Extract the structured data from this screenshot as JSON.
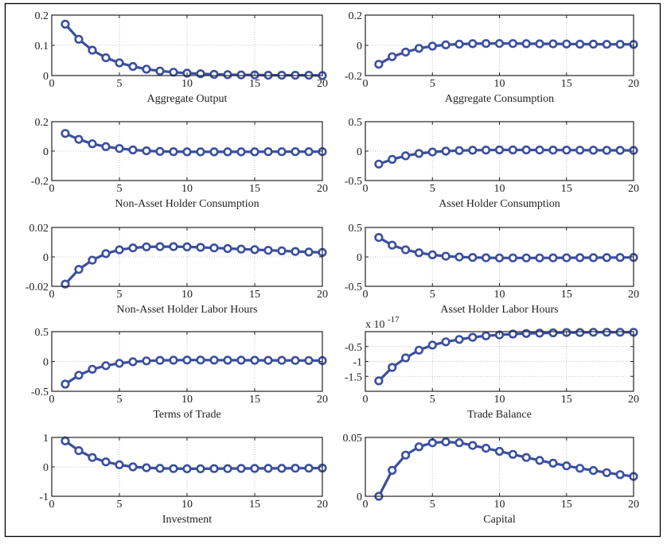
{
  "figure": {
    "line_color": "#3a4f9e",
    "marker_fill": "#ffffff",
    "frame_color": "#000000",
    "grid": true
  },
  "chart_data": [
    {
      "type": "line",
      "id": "aggregate-output",
      "xlabel": "Aggregate Output",
      "ylabel": "",
      "x": [
        1,
        2,
        3,
        4,
        5,
        6,
        7,
        8,
        9,
        10,
        11,
        12,
        13,
        14,
        15,
        16,
        17,
        18,
        19,
        20
      ],
      "values": [
        0.17,
        0.12,
        0.084,
        0.059,
        0.042,
        0.03,
        0.021,
        0.015,
        0.011,
        0.008,
        0.006,
        0.004,
        0.003,
        0.002,
        0.002,
        0.001,
        0.001,
        0.001,
        0.001,
        0.0
      ],
      "xlim": [
        0,
        20
      ],
      "ylim": [
        0,
        0.2
      ],
      "xticks": [
        "0",
        "5",
        "10",
        "15",
        "20"
      ],
      "xtick_values": [
        0,
        5,
        10,
        15,
        20
      ],
      "yticks": [
        "0",
        "0.1",
        "0.2"
      ],
      "ytick_values": [
        0,
        0.1,
        0.2
      ]
    },
    {
      "type": "line",
      "id": "aggregate-consumption",
      "xlabel": "Aggregate Consumption",
      "ylabel": "",
      "x": [
        1,
        2,
        3,
        4,
        5,
        6,
        7,
        8,
        9,
        10,
        11,
        12,
        13,
        14,
        15,
        16,
        17,
        18,
        19,
        20
      ],
      "values": [
        -0.125,
        -0.075,
        -0.045,
        -0.02,
        -0.005,
        0.003,
        0.008,
        0.011,
        0.012,
        0.012,
        0.012,
        0.011,
        0.01,
        0.01,
        0.009,
        0.008,
        0.008,
        0.007,
        0.007,
        0.006
      ],
      "xlim": [
        0,
        20
      ],
      "ylim": [
        -0.2,
        0.2
      ],
      "xticks": [
        "0",
        "5",
        "10",
        "15",
        "20"
      ],
      "xtick_values": [
        0,
        5,
        10,
        15,
        20
      ],
      "yticks": [
        "-0.2",
        "0",
        "0.2"
      ],
      "ytick_values": [
        -0.2,
        0,
        0.2
      ]
    },
    {
      "type": "line",
      "id": "non-asset-holder-consumption",
      "xlabel": "Non-Asset Holder Consumption",
      "ylabel": "",
      "x": [
        1,
        2,
        3,
        4,
        5,
        6,
        7,
        8,
        9,
        10,
        11,
        12,
        13,
        14,
        15,
        16,
        17,
        18,
        19,
        20
      ],
      "values": [
        0.12,
        0.08,
        0.05,
        0.03,
        0.018,
        0.008,
        0.002,
        -0.002,
        -0.004,
        -0.005,
        -0.005,
        -0.005,
        -0.005,
        -0.005,
        -0.005,
        -0.004,
        -0.004,
        -0.004,
        -0.004,
        -0.004
      ],
      "xlim": [
        0,
        20
      ],
      "ylim": [
        -0.2,
        0.2
      ],
      "xticks": [
        "0",
        "5",
        "10",
        "15",
        "20"
      ],
      "xtick_values": [
        0,
        5,
        10,
        15,
        20
      ],
      "yticks": [
        "-0.2",
        "0",
        "0.2"
      ],
      "ytick_values": [
        -0.2,
        0,
        0.2
      ]
    },
    {
      "type": "line",
      "id": "asset-holder-consumption",
      "xlabel": "Asset Holder Consumption",
      "ylabel": "",
      "x": [
        1,
        2,
        3,
        4,
        5,
        6,
        7,
        8,
        9,
        10,
        11,
        12,
        13,
        14,
        15,
        16,
        17,
        18,
        19,
        20
      ],
      "values": [
        -0.22,
        -0.14,
        -0.08,
        -0.04,
        -0.015,
        0.0,
        0.01,
        0.015,
        0.018,
        0.02,
        0.02,
        0.02,
        0.019,
        0.018,
        0.017,
        0.016,
        0.015,
        0.014,
        0.013,
        0.012
      ],
      "xlim": [
        0,
        20
      ],
      "ylim": [
        -0.5,
        0.5
      ],
      "xticks": [
        "0",
        "5",
        "10",
        "15",
        "20"
      ],
      "xtick_values": [
        0,
        5,
        10,
        15,
        20
      ],
      "yticks": [
        "-0.5",
        "0",
        "0.5"
      ],
      "ytick_values": [
        -0.5,
        0,
        0.5
      ]
    },
    {
      "type": "line",
      "id": "non-asset-holder-labor-hours",
      "xlabel": "Non-Asset Holder Labor Hours",
      "ylabel": "",
      "x": [
        1,
        2,
        3,
        4,
        5,
        6,
        7,
        8,
        9,
        10,
        11,
        12,
        13,
        14,
        15,
        16,
        17,
        18,
        19,
        20
      ],
      "values": [
        -0.0185,
        -0.0085,
        -0.0022,
        0.0022,
        0.0048,
        0.0061,
        0.0068,
        0.007,
        0.007,
        0.0068,
        0.0065,
        0.0061,
        0.0057,
        0.0053,
        0.0049,
        0.0045,
        0.0041,
        0.0037,
        0.0033,
        0.003
      ],
      "xlim": [
        0,
        20
      ],
      "ylim": [
        -0.02,
        0.02
      ],
      "xticks": [
        "0",
        "5",
        "10",
        "15",
        "20"
      ],
      "xtick_values": [
        0,
        5,
        10,
        15,
        20
      ],
      "yticks": [
        "-0.02",
        "0",
        "0.02"
      ],
      "ytick_values": [
        -0.02,
        0,
        0.02
      ]
    },
    {
      "type": "line",
      "id": "asset-holder-labor-hours",
      "xlabel": "Asset Holder Labor Hours",
      "ylabel": "",
      "x": [
        1,
        2,
        3,
        4,
        5,
        6,
        7,
        8,
        9,
        10,
        11,
        12,
        13,
        14,
        15,
        16,
        17,
        18,
        19,
        20
      ],
      "values": [
        0.33,
        0.2,
        0.12,
        0.07,
        0.035,
        0.012,
        -0.002,
        -0.01,
        -0.015,
        -0.017,
        -0.018,
        -0.018,
        -0.017,
        -0.016,
        -0.015,
        -0.014,
        -0.013,
        -0.012,
        -0.011,
        -0.01
      ],
      "xlim": [
        0,
        20
      ],
      "ylim": [
        -0.5,
        0.5
      ],
      "xticks": [
        "0",
        "5",
        "10",
        "15",
        "20"
      ],
      "xtick_values": [
        0,
        5,
        10,
        15,
        20
      ],
      "yticks": [
        "-0.5",
        "0",
        "0.5"
      ],
      "ytick_values": [
        -0.5,
        0,
        0.5
      ]
    },
    {
      "type": "line",
      "id": "terms-of-trade",
      "xlabel": "Terms of Trade",
      "ylabel": "",
      "x": [
        1,
        2,
        3,
        4,
        5,
        6,
        7,
        8,
        9,
        10,
        11,
        12,
        13,
        14,
        15,
        16,
        17,
        18,
        19,
        20
      ],
      "values": [
        -0.38,
        -0.23,
        -0.13,
        -0.07,
        -0.03,
        -0.005,
        0.01,
        0.018,
        0.022,
        0.024,
        0.024,
        0.023,
        0.022,
        0.021,
        0.02,
        0.019,
        0.018,
        0.017,
        0.016,
        0.015
      ],
      "xlim": [
        0,
        20
      ],
      "ylim": [
        -0.5,
        0.5
      ],
      "xticks": [
        "0",
        "5",
        "10",
        "15",
        "20"
      ],
      "xtick_values": [
        0,
        5,
        10,
        15,
        20
      ],
      "yticks": [
        "-0.5",
        "0",
        "0.5"
      ],
      "ytick_values": [
        -0.5,
        0,
        0.5
      ]
    },
    {
      "type": "line",
      "id": "trade-balance",
      "xlabel": "Trade Balance",
      "ylabel": "",
      "y_scale_label": "x 10",
      "y_scale_exponent": "-17",
      "x": [
        1,
        2,
        3,
        4,
        5,
        6,
        7,
        8,
        9,
        10,
        11,
        12,
        13,
        14,
        15,
        16,
        17,
        18,
        19,
        20
      ],
      "values": [
        -1.65,
        -1.2,
        -0.88,
        -0.62,
        -0.45,
        -0.34,
        -0.26,
        -0.19,
        -0.14,
        -0.11,
        -0.08,
        -0.06,
        -0.05,
        -0.04,
        -0.03,
        -0.03,
        -0.02,
        -0.02,
        -0.02,
        -0.02
      ],
      "xlim": [
        0,
        20
      ],
      "ylim": [
        -2,
        0
      ],
      "xticks": [
        "0",
        "5",
        "10",
        "15",
        "20"
      ],
      "xtick_values": [
        0,
        5,
        10,
        15,
        20
      ],
      "yticks": [
        "-1.5",
        "-1",
        "-0.5"
      ],
      "ytick_values": [
        -1.5,
        -1,
        -0.5
      ]
    },
    {
      "type": "line",
      "id": "investment",
      "xlabel": "Investment",
      "ylabel": "",
      "x": [
        1,
        2,
        3,
        4,
        5,
        6,
        7,
        8,
        9,
        10,
        11,
        12,
        13,
        14,
        15,
        16,
        17,
        18,
        19,
        20
      ],
      "values": [
        0.88,
        0.55,
        0.32,
        0.17,
        0.07,
        0.0,
        -0.03,
        -0.05,
        -0.06,
        -0.065,
        -0.065,
        -0.06,
        -0.06,
        -0.055,
        -0.055,
        -0.05,
        -0.05,
        -0.045,
        -0.045,
        -0.04
      ],
      "xlim": [
        0,
        20
      ],
      "ylim": [
        -1,
        1
      ],
      "xticks": [
        "0",
        "5",
        "10",
        "15",
        "20"
      ],
      "xtick_values": [
        0,
        5,
        10,
        15,
        20
      ],
      "yticks": [
        "-1",
        "0",
        "1"
      ],
      "ytick_values": [
        -1,
        0,
        1
      ]
    },
    {
      "type": "line",
      "id": "capital",
      "xlabel": "Capital",
      "ylabel": "",
      "x": [
        1,
        2,
        3,
        4,
        5,
        6,
        7,
        8,
        9,
        10,
        11,
        12,
        13,
        14,
        15,
        16,
        17,
        18,
        19,
        20
      ],
      "values": [
        0.0,
        0.022,
        0.035,
        0.042,
        0.0455,
        0.0462,
        0.0455,
        0.0432,
        0.0408,
        0.0382,
        0.0356,
        0.033,
        0.0305,
        0.0281,
        0.0259,
        0.0238,
        0.0219,
        0.0201,
        0.0184,
        0.0168
      ],
      "xlim": [
        0,
        20
      ],
      "ylim": [
        0,
        0.05
      ],
      "xticks": [
        "0",
        "5",
        "10",
        "15",
        "20"
      ],
      "xtick_values": [
        0,
        5,
        10,
        15,
        20
      ],
      "yticks": [
        "0",
        "0.05"
      ],
      "ytick_values": [
        0,
        0.05
      ]
    }
  ]
}
